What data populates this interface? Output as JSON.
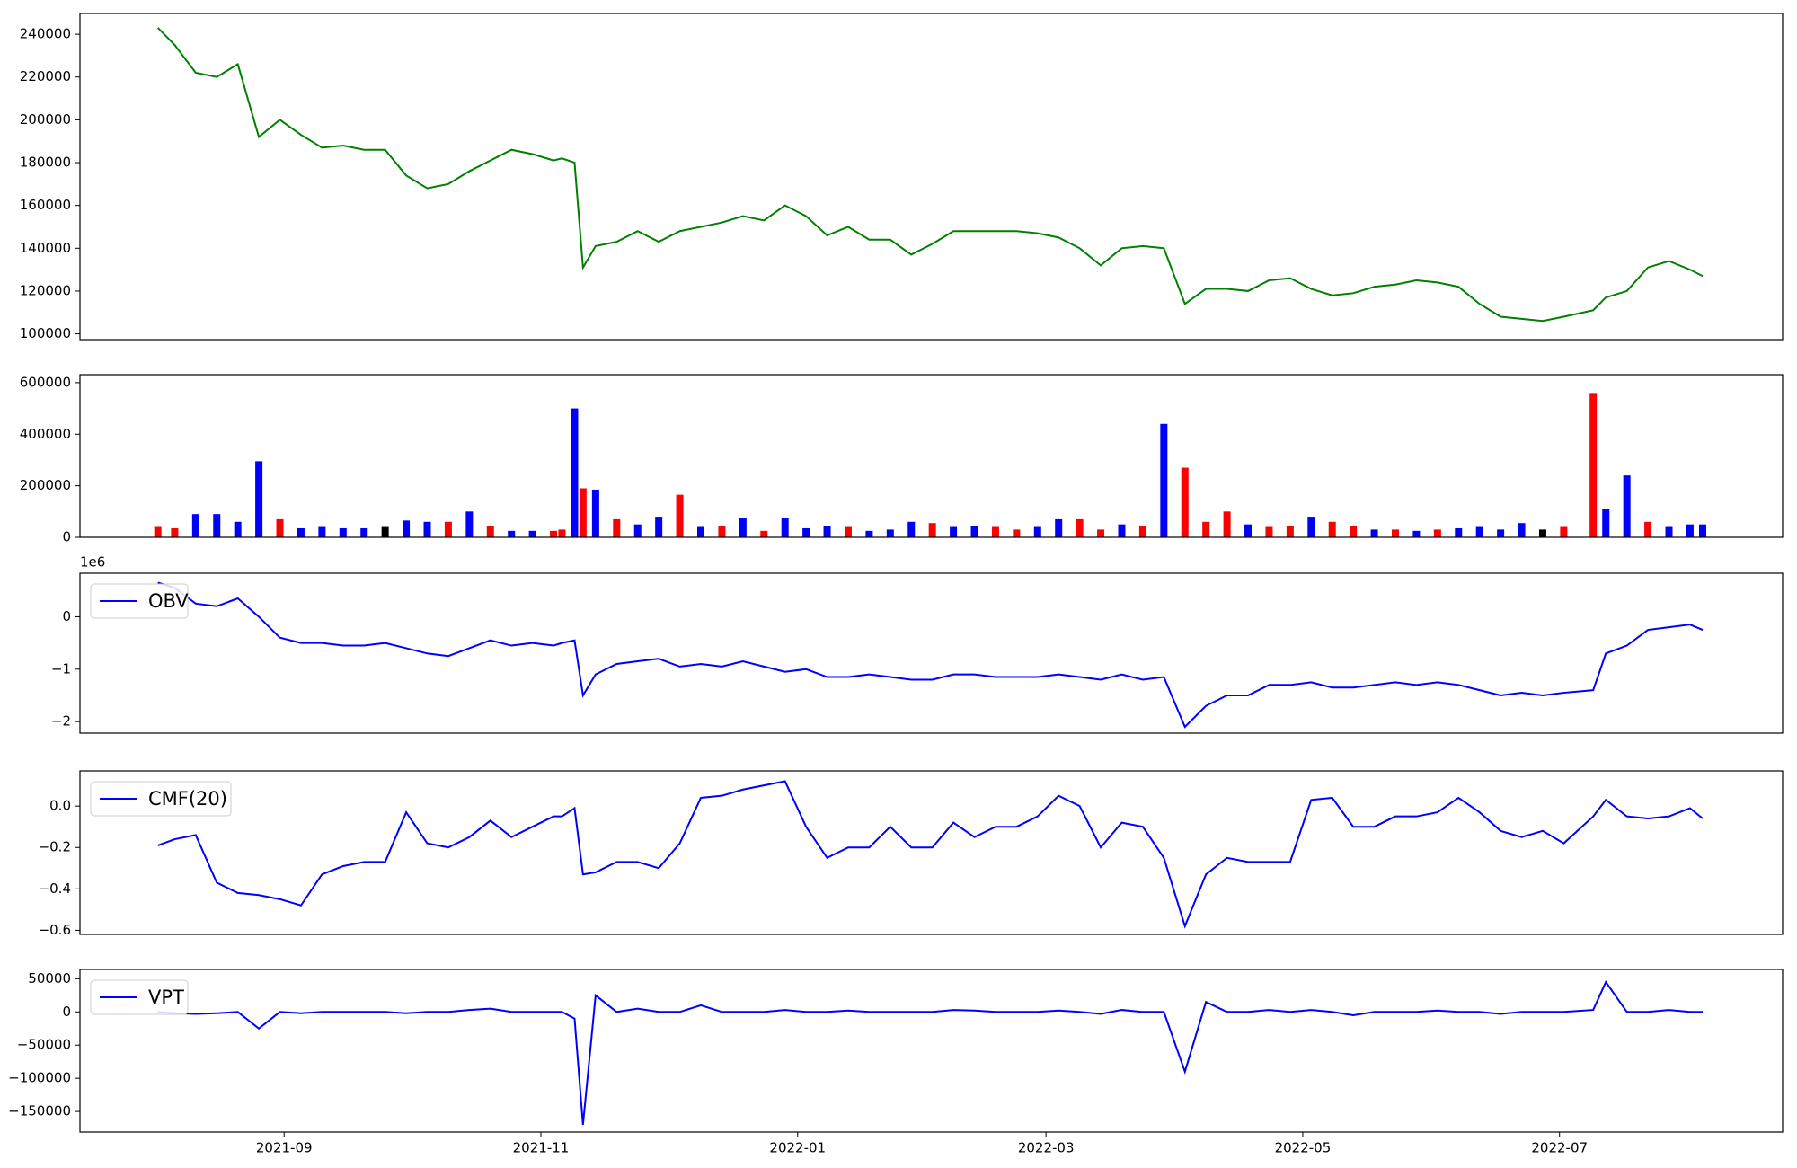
{
  "chart_data": [
    {
      "type": "line",
      "x": [
        1,
        5,
        10,
        15,
        20,
        25,
        30,
        35,
        40,
        45,
        50,
        55,
        60,
        65,
        70,
        75,
        80,
        85,
        90,
        95,
        97,
        100,
        102,
        105,
        110,
        115,
        120,
        125,
        130,
        135,
        140,
        145,
        150,
        155,
        160,
        165,
        170,
        175,
        180,
        185,
        190,
        195,
        200,
        205,
        210,
        215,
        220,
        225,
        230,
        235,
        240,
        245,
        250,
        255,
        260,
        265,
        270,
        275,
        280,
        285,
        290,
        295,
        300,
        305,
        310,
        315,
        320,
        325,
        330,
        335,
        342,
        345,
        350,
        355,
        360,
        365,
        368
      ],
      "series": [
        {
          "color": "#008000",
          "values": [
            243000,
            235000,
            222000,
            220000,
            226000,
            192000,
            200000,
            193000,
            187000,
            188000,
            186000,
            186000,
            174000,
            168000,
            170000,
            176000,
            181000,
            186000,
            184000,
            181000,
            182000,
            180000,
            131000,
            141000,
            143000,
            148000,
            143000,
            148000,
            150000,
            152000,
            155000,
            153000,
            160000,
            155000,
            146000,
            150000,
            144000,
            144000,
            137000,
            142000,
            148000,
            148000,
            148000,
            148000,
            147000,
            145000,
            140000,
            132000,
            140000,
            141000,
            140000,
            114000,
            121000,
            121000,
            120000,
            125000,
            126000,
            121000,
            118000,
            119000,
            122000,
            123000,
            125000,
            124000,
            122000,
            114000,
            108000,
            107000,
            106000,
            108000,
            111000,
            117000,
            120000,
            131000,
            134000,
            130000,
            127000
          ]
        }
      ],
      "xlim": [
        -17.5,
        387
      ],
      "ylim": [
        97300,
        249700
      ],
      "yticks": [
        100000,
        120000,
        140000,
        160000,
        180000,
        200000,
        220000,
        240000
      ]
    },
    {
      "type": "bar",
      "x": [
        1,
        5,
        10,
        15,
        20,
        25,
        30,
        35,
        40,
        45,
        50,
        55,
        60,
        65,
        70,
        75,
        80,
        85,
        90,
        95,
        97,
        100,
        102,
        105,
        110,
        115,
        120,
        125,
        130,
        135,
        140,
        145,
        150,
        155,
        160,
        165,
        170,
        175,
        180,
        185,
        190,
        195,
        200,
        205,
        210,
        215,
        220,
        225,
        230,
        235,
        240,
        245,
        250,
        255,
        260,
        265,
        270,
        275,
        280,
        285,
        290,
        295,
        300,
        305,
        310,
        315,
        320,
        325,
        330,
        335,
        342,
        345,
        350,
        355,
        360,
        365,
        368
      ],
      "values": [
        40000,
        35000,
        90000,
        90000,
        60000,
        295000,
        70000,
        35000,
        40000,
        35000,
        35000,
        40000,
        65000,
        60000,
        60000,
        100000,
        45000,
        25000,
        25000,
        25000,
        30000,
        500000,
        190000,
        185000,
        70000,
        50000,
        80000,
        165000,
        40000,
        45000,
        75000,
        25000,
        75000,
        35000,
        45000,
        40000,
        25000,
        30000,
        60000,
        55000,
        40000,
        45000,
        40000,
        30000,
        40000,
        70000,
        70000,
        30000,
        50000,
        45000,
        440000,
        270000,
        60000,
        100000,
        50000,
        40000,
        45000,
        80000,
        60000,
        45000,
        30000,
        30000,
        25000,
        30000,
        35000,
        40000,
        30000,
        55000,
        30000,
        40000,
        560000,
        110000,
        240000,
        60000,
        40000,
        50000,
        50000
      ],
      "colors": [
        "red",
        "red",
        "blue",
        "blue",
        "blue",
        "blue",
        "red",
        "blue",
        "blue",
        "blue",
        "blue",
        "black",
        "blue",
        "blue",
        "red",
        "blue",
        "red",
        "blue",
        "blue",
        "red",
        "red",
        "blue",
        "red",
        "blue",
        "red",
        "blue",
        "blue",
        "red",
        "blue",
        "red",
        "blue",
        "red",
        "blue",
        "blue",
        "blue",
        "red",
        "blue",
        "blue",
        "blue",
        "red",
        "blue",
        "blue",
        "red",
        "red",
        "blue",
        "blue",
        "red",
        "red",
        "blue",
        "red",
        "blue",
        "red",
        "red",
        "red",
        "blue",
        "red",
        "red",
        "blue",
        "red",
        "red",
        "blue",
        "red",
        "blue",
        "red",
        "blue",
        "blue",
        "blue",
        "blue",
        "black",
        "red",
        "red",
        "blue",
        "blue",
        "red",
        "blue",
        "blue",
        "blue"
      ],
      "xlim": [
        -17.5,
        387
      ],
      "ylim": [
        0,
        631000
      ],
      "yticks": [
        0,
        200000,
        400000,
        600000
      ]
    },
    {
      "type": "line",
      "offset_label": "1e6",
      "legend": "upper left",
      "x": [
        1,
        5,
        10,
        15,
        20,
        25,
        30,
        35,
        40,
        45,
        50,
        55,
        60,
        65,
        70,
        75,
        80,
        85,
        90,
        95,
        97,
        100,
        102,
        105,
        110,
        115,
        120,
        125,
        130,
        135,
        140,
        145,
        150,
        155,
        160,
        165,
        170,
        175,
        180,
        185,
        190,
        195,
        200,
        205,
        210,
        215,
        220,
        225,
        230,
        235,
        240,
        245,
        250,
        255,
        260,
        265,
        270,
        275,
        280,
        285,
        290,
        295,
        300,
        305,
        310,
        315,
        320,
        325,
        330,
        335,
        342,
        345,
        350,
        355,
        360,
        365,
        368
      ],
      "series": [
        {
          "name": "OBV",
          "color": "#0000ff",
          "values": [
            0.65,
            0.55,
            0.25,
            0.2,
            0.35,
            0.0,
            -0.4,
            -0.5,
            -0.5,
            -0.55,
            -0.55,
            -0.5,
            -0.6,
            -0.7,
            -0.75,
            -0.6,
            -0.45,
            -0.55,
            -0.5,
            -0.55,
            -0.5,
            -0.45,
            -1.5,
            -1.1,
            -0.9,
            -0.85,
            -0.8,
            -0.95,
            -0.9,
            -0.95,
            -0.85,
            -0.95,
            -1.05,
            -1.0,
            -1.15,
            -1.15,
            -1.1,
            -1.15,
            -1.2,
            -1.2,
            -1.1,
            -1.1,
            -1.15,
            -1.15,
            -1.15,
            -1.1,
            -1.15,
            -1.2,
            -1.1,
            -1.2,
            -1.15,
            -2.1,
            -1.7,
            -1.5,
            -1.5,
            -1.3,
            -1.3,
            -1.25,
            -1.35,
            -1.35,
            -1.3,
            -1.25,
            -1.3,
            -1.25,
            -1.3,
            -1.4,
            -1.5,
            -1.45,
            -1.5,
            -1.45,
            -1.4,
            -0.7,
            -0.55,
            -0.25,
            -0.2,
            -0.15,
            -0.25
          ]
        }
      ],
      "xlim": [
        -17.5,
        387
      ],
      "ylim": [
        -2.22,
        0.83
      ],
      "yticks": [
        {
          "value": -2,
          "label": "−2"
        },
        {
          "value": -1,
          "label": "−1"
        },
        0
      ]
    },
    {
      "type": "line",
      "legend": "upper left",
      "x": [
        1,
        5,
        10,
        15,
        20,
        25,
        30,
        35,
        40,
        45,
        50,
        55,
        60,
        65,
        70,
        75,
        80,
        85,
        90,
        95,
        97,
        100,
        102,
        105,
        110,
        115,
        120,
        125,
        130,
        135,
        140,
        145,
        150,
        155,
        160,
        165,
        170,
        175,
        180,
        185,
        190,
        195,
        200,
        205,
        210,
        215,
        220,
        225,
        230,
        235,
        240,
        245,
        250,
        255,
        260,
        265,
        270,
        275,
        280,
        285,
        290,
        295,
        300,
        305,
        310,
        315,
        320,
        325,
        330,
        335,
        342,
        345,
        350,
        355,
        360,
        365,
        368
      ],
      "series": [
        {
          "name": "CMF(20)",
          "color": "#0000ff",
          "values": [
            -0.19,
            -0.16,
            -0.14,
            -0.37,
            -0.42,
            -0.43,
            -0.45,
            -0.48,
            -0.33,
            -0.29,
            -0.27,
            -0.27,
            -0.03,
            -0.18,
            -0.2,
            -0.15,
            -0.07,
            -0.15,
            -0.1,
            -0.05,
            -0.05,
            -0.01,
            -0.33,
            -0.32,
            -0.27,
            -0.27,
            -0.3,
            -0.18,
            0.04,
            0.05,
            0.08,
            0.1,
            0.12,
            -0.1,
            -0.25,
            -0.2,
            -0.2,
            -0.1,
            -0.2,
            -0.2,
            -0.08,
            -0.15,
            -0.1,
            -0.1,
            -0.05,
            0.05,
            0,
            -0.2,
            -0.08,
            -0.1,
            -0.25,
            -0.58,
            -0.33,
            -0.25,
            -0.27,
            -0.27,
            -0.27,
            0.03,
            0.04,
            -0.1,
            -0.1,
            -0.05,
            -0.05,
            -0.03,
            0.04,
            -0.03,
            -0.12,
            -0.15,
            -0.12,
            -0.18,
            -0.05,
            0.03,
            -0.05,
            -0.06,
            -0.05,
            -0.01,
            -0.06
          ]
        }
      ],
      "xlim": [
        -17.5,
        387
      ],
      "ylim": [
        -0.62,
        0.17
      ],
      "yticks": [
        {
          "value": -0.6,
          "label": "−0.6"
        },
        {
          "value": -0.4,
          "label": "−0.4"
        },
        {
          "value": -0.2,
          "label": "−0.2"
        },
        {
          "value": 0,
          "label": "0.0"
        }
      ]
    },
    {
      "type": "line",
      "legend": "upper left",
      "x": [
        1,
        5,
        10,
        15,
        20,
        25,
        30,
        35,
        40,
        45,
        50,
        55,
        60,
        65,
        70,
        75,
        80,
        85,
        90,
        95,
        97,
        100,
        102,
        105,
        110,
        115,
        120,
        125,
        130,
        135,
        140,
        145,
        150,
        155,
        160,
        165,
        170,
        175,
        180,
        185,
        190,
        195,
        200,
        205,
        210,
        215,
        220,
        225,
        230,
        235,
        240,
        245,
        250,
        255,
        260,
        265,
        270,
        275,
        280,
        285,
        290,
        295,
        300,
        305,
        310,
        315,
        320,
        325,
        330,
        335,
        342,
        345,
        350,
        355,
        360,
        365,
        368
      ],
      "series": [
        {
          "name": "VPT",
          "color": "#0000ff",
          "values": [
            0,
            -2000,
            -3000,
            -2000,
            0,
            -25000,
            0,
            -2000,
            0,
            0,
            0,
            0,
            -2000,
            0,
            0,
            3000,
            5000,
            0,
            0,
            0,
            0,
            -10000,
            -170000,
            25000,
            0,
            5000,
            0,
            0,
            10000,
            0,
            0,
            0,
            3000,
            0,
            0,
            2000,
            0,
            0,
            0,
            0,
            3000,
            2000,
            0,
            0,
            0,
            2000,
            0,
            -3000,
            3000,
            0,
            0,
            -90000,
            15000,
            0,
            0,
            3000,
            0,
            3000,
            0,
            -5000,
            0,
            0,
            0,
            2000,
            0,
            0,
            -3000,
            0,
            0,
            0,
            3000,
            45000,
            0,
            0,
            3000,
            0,
            0
          ]
        }
      ],
      "xlim": [
        -17.5,
        387
      ],
      "ylim": [
        -181000,
        64000
      ],
      "yticks": [
        {
          "value": -150000,
          "label": "−150000"
        },
        {
          "value": -100000,
          "label": "−100000"
        },
        {
          "value": -50000,
          "label": "−50000"
        },
        0,
        50000
      ],
      "xticks": [
        {
          "value": 31,
          "label": "2021-09"
        },
        {
          "value": 92,
          "label": "2021-11"
        },
        {
          "value": 153,
          "label": "2022-01"
        },
        {
          "value": 212,
          "label": "2022-03"
        },
        {
          "value": 273,
          "label": "2022-05"
        },
        {
          "value": 334,
          "label": "2022-07"
        }
      ]
    }
  ]
}
